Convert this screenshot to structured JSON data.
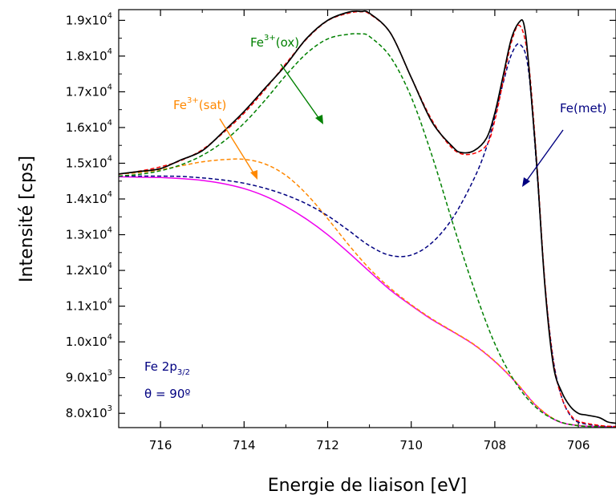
{
  "chart_data": {
    "type": "line",
    "xlabel": "Energie de liaison [eV]",
    "ylabel": "Intensité [cps]",
    "xlim": [
      717.0,
      705.1
    ],
    "x_reversed": true,
    "ylim": [
      7600,
      19300
    ],
    "x_ticks": [
      716,
      714,
      712,
      710,
      708,
      706
    ],
    "x_tick_labels": [
      "716",
      "714",
      "712",
      "710",
      "708",
      "706"
    ],
    "y_ticks": [
      8000,
      9000,
      10000,
      11000,
      12000,
      13000,
      14000,
      15000,
      16000,
      17000,
      18000,
      19000
    ],
    "y_tick_labels": [
      {
        "mant": "8.0x10",
        "exp": "3"
      },
      {
        "mant": "9.0x10",
        "exp": "3"
      },
      {
        "mant": "1.0x10",
        "exp": "4"
      },
      {
        "mant": "1.1x10",
        "exp": "4"
      },
      {
        "mant": "1.2x10",
        "exp": "4"
      },
      {
        "mant": "1.3x10",
        "exp": "4"
      },
      {
        "mant": "1.4x10",
        "exp": "4"
      },
      {
        "mant": "1.5x10",
        "exp": "4"
      },
      {
        "mant": "1.6x10",
        "exp": "4"
      },
      {
        "mant": "1.7x10",
        "exp": "4"
      },
      {
        "mant": "1.8x10",
        "exp": "4"
      },
      {
        "mant": "1.9x10",
        "exp": "4"
      }
    ],
    "grid": false,
    "series": [
      {
        "key": "background",
        "color": "#ee00ee",
        "style": "solid",
        "x": [
          717.0,
          716.5,
          716.0,
          715.5,
          715.0,
          714.5,
          714.0,
          713.5,
          713.0,
          712.5,
          712.0,
          711.5,
          711.0,
          710.5,
          710.0,
          709.5,
          709.0,
          708.5,
          708.0,
          707.5,
          707.0,
          706.5,
          706.0,
          705.5,
          705.1
        ],
        "y": [
          14620,
          14610,
          14600,
          14570,
          14520,
          14430,
          14290,
          14080,
          13790,
          13430,
          13000,
          12500,
          11970,
          11450,
          11020,
          10620,
          10280,
          9920,
          9450,
          8870,
          8200,
          7780,
          7660,
          7630,
          7620
        ]
      },
      {
        "key": "fe-sat",
        "color": "#ff8800",
        "style": "dashed",
        "x": [
          717.0,
          716.5,
          716.0,
          715.5,
          715.0,
          714.5,
          714.0,
          713.5,
          713.0,
          712.5,
          712.0,
          711.5,
          711.0,
          710.5,
          710.0,
          709.5,
          709.0,
          708.5,
          708.0,
          707.5,
          707.0,
          706.5,
          706.0,
          705.5,
          705.1
        ],
        "y": [
          14700,
          14740,
          14820,
          14930,
          15040,
          15100,
          15110,
          14980,
          14660,
          14130,
          13450,
          12720,
          12050,
          11500,
          11040,
          10640,
          10290,
          9930,
          9460,
          8880,
          8210,
          7790,
          7660,
          7630,
          7620
        ]
      },
      {
        "key": "fe-met",
        "color": "#000080",
        "style": "dashed",
        "x": [
          717.0,
          716.5,
          716.0,
          715.5,
          715.0,
          714.5,
          714.0,
          713.5,
          713.0,
          712.5,
          712.0,
          711.5,
          711.0,
          710.5,
          710.0,
          709.5,
          709.0,
          708.5,
          708.2,
          708.0,
          707.8,
          707.6,
          707.4,
          707.2,
          707.0,
          706.8,
          706.6,
          706.4,
          706.2,
          706.0,
          705.5,
          705.1
        ],
        "y": [
          14640,
          14640,
          14640,
          14630,
          14590,
          14530,
          14440,
          14300,
          14110,
          13860,
          13530,
          13120,
          12690,
          12420,
          12430,
          12780,
          13480,
          14560,
          15440,
          16300,
          17250,
          18050,
          18330,
          17650,
          14900,
          11600,
          9500,
          8450,
          7950,
          7750,
          7650,
          7630
        ]
      },
      {
        "key": "fe-ox",
        "color": "#008000",
        "style": "dashed",
        "x": [
          717.0,
          716.5,
          716.0,
          715.5,
          715.0,
          714.5,
          714.0,
          713.5,
          713.0,
          712.5,
          712.0,
          711.5,
          711.2,
          711.0,
          710.5,
          710.0,
          709.5,
          709.0,
          708.5,
          708.0,
          707.5,
          707.0,
          706.5,
          706.0,
          705.5,
          705.1
        ],
        "y": [
          14640,
          14690,
          14790,
          14960,
          15220,
          15600,
          16120,
          16760,
          17460,
          18080,
          18480,
          18610,
          18620,
          18550,
          17980,
          16850,
          15200,
          13300,
          11500,
          9950,
          8850,
          8150,
          7790,
          7650,
          7630,
          7620
        ]
      },
      {
        "key": "envelope",
        "color": "#ff0000",
        "style": "dashed",
        "x": [
          717.0,
          716.5,
          716.0,
          715.5,
          715.0,
          714.5,
          714.0,
          713.5,
          713.0,
          712.5,
          712.0,
          711.5,
          711.2,
          711.0,
          710.5,
          710.0,
          709.5,
          709.0,
          708.6,
          708.2,
          708.0,
          707.8,
          707.6,
          707.4,
          707.2,
          707.0,
          706.8,
          706.6,
          706.4,
          706.2,
          706.0,
          705.5,
          705.1
        ],
        "y": [
          14690,
          14780,
          14900,
          15080,
          15380,
          15850,
          16400,
          17060,
          17790,
          18480,
          18990,
          19200,
          19240,
          19180,
          18650,
          17400,
          16200,
          15400,
          15250,
          15500,
          16200,
          17300,
          18400,
          18850,
          17900,
          15100,
          11650,
          9450,
          8450,
          7980,
          7780,
          7660,
          7630
        ]
      },
      {
        "key": "experimental",
        "color": "#000000",
        "style": "solid",
        "x": [
          717.0,
          716.5,
          716.0,
          715.5,
          715.0,
          714.5,
          714.0,
          713.5,
          713.0,
          712.5,
          712.0,
          711.5,
          711.2,
          711.0,
          710.5,
          710.0,
          709.5,
          709.0,
          708.8,
          708.5,
          708.2,
          708.0,
          707.8,
          707.6,
          707.4,
          707.3,
          707.2,
          707.0,
          706.8,
          706.6,
          706.4,
          706.2,
          706.0,
          705.8,
          705.5,
          705.3,
          705.1
        ],
        "y": [
          14700,
          14770,
          14850,
          15100,
          15350,
          15880,
          16450,
          17100,
          17750,
          18500,
          19000,
          19230,
          19250,
          19200,
          18650,
          17400,
          16150,
          15450,
          15300,
          15350,
          15700,
          16400,
          17450,
          18500,
          18970,
          18870,
          17900,
          15000,
          11550,
          9350,
          8600,
          8200,
          8000,
          7950,
          7880,
          7760,
          7720
        ]
      }
    ]
  },
  "annotations": {
    "fe_ox": {
      "text": "Fe",
      "sup": "3+",
      "suffix": "(ox)",
      "color": "#008000"
    },
    "fe_sat": {
      "text": "Fe",
      "sup": "3+",
      "suffix": "(sat)",
      "color": "#ff8800"
    },
    "fe_met": {
      "text": "Fe(met)",
      "color": "#000080"
    },
    "sample_label": {
      "prefix": "Fe 2p",
      "sub": "3/2",
      "color": "#000080"
    },
    "angle_label": {
      "text": "θ = 90º",
      "color": "#000080"
    }
  }
}
